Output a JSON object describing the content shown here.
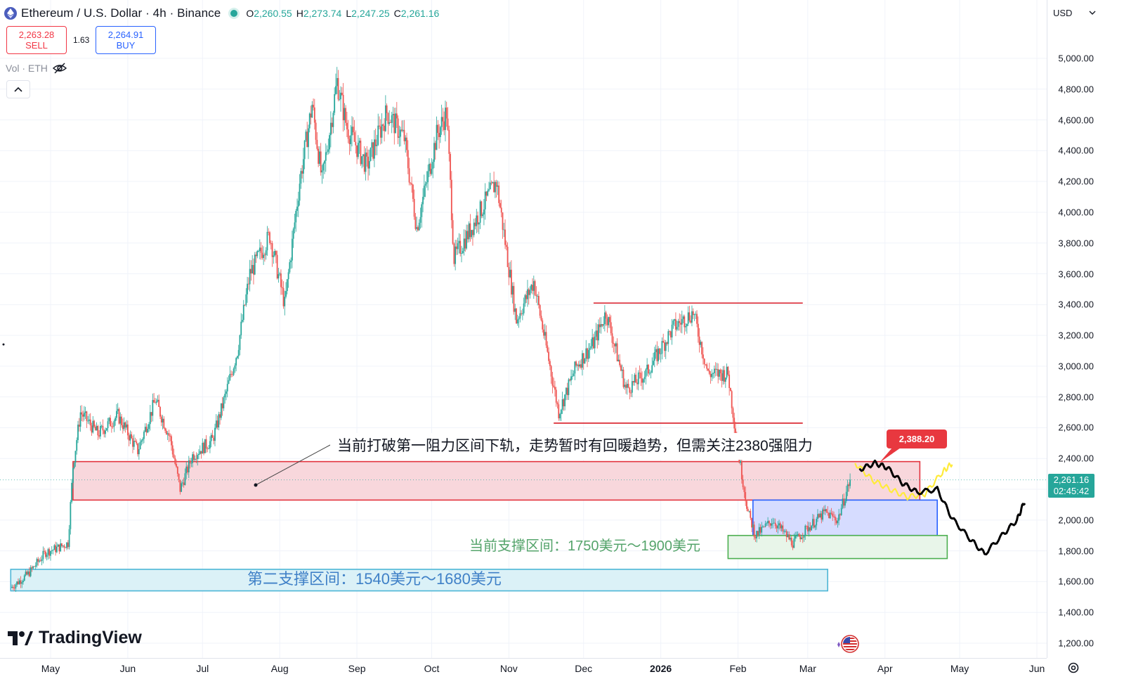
{
  "header": {
    "symbol_title": "Ethereum / U.S. Dollar · 4h · Binance",
    "ohlc": [
      {
        "k": "O",
        "v": "2,260.55"
      },
      {
        "k": "H",
        "v": "2,273.74"
      },
      {
        "k": "L",
        "v": "2,247.25"
      },
      {
        "k": "C",
        "v": "2,261.16"
      }
    ],
    "sell_price": "2,263.28",
    "sell_label": "SELL",
    "spread": "1.63",
    "buy_price": "2,264.91",
    "buy_label": "BUY",
    "vol_label": "Vol · ETH",
    "collapse_icon": "chevron-up-icon"
  },
  "currency": "USD",
  "current_price": {
    "price": "2,261.16",
    "countdown": "02:45:42"
  },
  "price_ticks": [
    "5,000.00",
    "4,800.00",
    "4,600.00",
    "4,400.00",
    "4,200.00",
    "4,000.00",
    "3,800.00",
    "3,600.00",
    "3,400.00",
    "3,200.00",
    "3,000.00",
    "2,800.00",
    "2,600.00",
    "2,400.00",
    "2,000.00",
    "1,800.00",
    "1,600.00",
    "1,400.00",
    "1,200.00"
  ],
  "time_ticks": [
    {
      "label": "May",
      "bold": false
    },
    {
      "label": "Jun",
      "bold": false
    },
    {
      "label": "Jul",
      "bold": false
    },
    {
      "label": "Aug",
      "bold": false
    },
    {
      "label": "Sep",
      "bold": false
    },
    {
      "label": "Oct",
      "bold": false
    },
    {
      "label": "Nov",
      "bold": false
    },
    {
      "label": "Dec",
      "bold": false
    },
    {
      "label": "2026",
      "bold": true
    },
    {
      "label": "Feb",
      "bold": false
    },
    {
      "label": "Mar",
      "bold": false
    },
    {
      "label": "Apr",
      "bold": false
    },
    {
      "label": "May",
      "bold": false
    },
    {
      "label": "Jun",
      "bold": false
    }
  ],
  "annotations": {
    "main_callout": "当前打破第一阻力区间下轨，走势暂时有回暖趋势，但需关注2380强阻力",
    "resistance_tag": "2,388.20",
    "support_zone_1": "当前支撑区间：1750美元～1900美元",
    "support_zone_2": "第二支撑区间：1540美元～1680美元"
  },
  "branding": {
    "logo_text": "TradingView"
  },
  "colors": {
    "up": "#26a69a",
    "down": "#ef5350",
    "resistance_zone": "#e3343f",
    "support_zone_blue": "#2962ff",
    "support_zone_green": "#4caf50",
    "support_zone_cyan": "#4db6d6",
    "projection_black": "#000000",
    "projection_yellow": "#ffeb3b"
  },
  "chart_data": {
    "type": "candlestick",
    "title": "Ethereum / U.S. Dollar · 4h · Binance",
    "x_range": [
      "2025-04-15",
      "2026-06-05"
    ],
    "y_range": [
      1140,
      5150
    ],
    "grid": true,
    "price_path": [
      {
        "d": "2025-04-15",
        "p": 1560
      },
      {
        "d": "2025-04-22",
        "p": 1650
      },
      {
        "d": "2025-04-29",
        "p": 1790
      },
      {
        "d": "2025-05-04",
        "p": 1820
      },
      {
        "d": "2025-05-08",
        "p": 1850
      },
      {
        "d": "2025-05-10",
        "p": 2350
      },
      {
        "d": "2025-05-13",
        "p": 2700
      },
      {
        "d": "2025-05-20",
        "p": 2560
      },
      {
        "d": "2025-05-28",
        "p": 2680
      },
      {
        "d": "2025-06-05",
        "p": 2450
      },
      {
        "d": "2025-06-12",
        "p": 2780
      },
      {
        "d": "2025-06-18",
        "p": 2530
      },
      {
        "d": "2025-06-22",
        "p": 2200
      },
      {
        "d": "2025-06-27",
        "p": 2420
      },
      {
        "d": "2025-07-05",
        "p": 2520
      },
      {
        "d": "2025-07-10",
        "p": 2800
      },
      {
        "d": "2025-07-15",
        "p": 3100
      },
      {
        "d": "2025-07-20",
        "p": 3600
      },
      {
        "d": "2025-07-28",
        "p": 3850
      },
      {
        "d": "2025-08-03",
        "p": 3400
      },
      {
        "d": "2025-08-09",
        "p": 4200
      },
      {
        "d": "2025-08-14",
        "p": 4700
      },
      {
        "d": "2025-08-18",
        "p": 4200
      },
      {
        "d": "2025-08-24",
        "p": 4850
      },
      {
        "d": "2025-08-28",
        "p": 4550
      },
      {
        "d": "2025-09-05",
        "p": 4300
      },
      {
        "d": "2025-09-13",
        "p": 4650
      },
      {
        "d": "2025-09-20",
        "p": 4480
      },
      {
        "d": "2025-09-25",
        "p": 3900
      },
      {
        "d": "2025-10-03",
        "p": 4500
      },
      {
        "d": "2025-10-07",
        "p": 4650
      },
      {
        "d": "2025-10-10",
        "p": 3700
      },
      {
        "d": "2025-10-17",
        "p": 3900
      },
      {
        "d": "2025-10-27",
        "p": 4200
      },
      {
        "d": "2025-11-04",
        "p": 3300
      },
      {
        "d": "2025-11-11",
        "p": 3550
      },
      {
        "d": "2025-11-21",
        "p": 2700
      },
      {
        "d": "2025-11-28",
        "p": 3000
      },
      {
        "d": "2025-12-05",
        "p": 3150
      },
      {
        "d": "2025-12-10",
        "p": 3350
      },
      {
        "d": "2025-12-18",
        "p": 2850
      },
      {
        "d": "2025-12-26",
        "p": 2950
      },
      {
        "d": "2026-01-06",
        "p": 3250
      },
      {
        "d": "2026-01-14",
        "p": 3350
      },
      {
        "d": "2026-01-20",
        "p": 2950
      },
      {
        "d": "2026-01-28",
        "p": 2950
      },
      {
        "d": "2026-02-01",
        "p": 2450
      },
      {
        "d": "2026-02-05",
        "p": 2050
      },
      {
        "d": "2026-02-08",
        "p": 1900
      },
      {
        "d": "2026-02-15",
        "p": 2000
      },
      {
        "d": "2026-02-23",
        "p": 1850
      },
      {
        "d": "2026-03-01",
        "p": 1950
      },
      {
        "d": "2026-03-08",
        "p": 2050
      },
      {
        "d": "2026-03-13",
        "p": 2000
      },
      {
        "d": "2026-03-18",
        "p": 2261
      }
    ],
    "zones": [
      {
        "name": "resistance",
        "from": "2025-05-10",
        "to": "2026-04-15",
        "low": 2130,
        "high": 2380
      },
      {
        "name": "support_blue",
        "from": "2026-02-07",
        "to": "2026-04-22",
        "low": 1900,
        "high": 2130
      },
      {
        "name": "support_green",
        "from": "2026-01-28",
        "to": "2026-04-26",
        "low": 1750,
        "high": 1900
      },
      {
        "name": "support_cyan",
        "from": "2025-04-15",
        "to": "2026-03-09",
        "low": 1540,
        "high": 1680
      }
    ],
    "horizontal_lines": [
      {
        "from": "2025-12-05",
        "to": "2026-02-27",
        "price": 3410
      },
      {
        "from": "2025-11-19",
        "to": "2026-02-27",
        "price": 2630
      }
    ],
    "projection_black": [
      {
        "d": "2026-03-22",
        "p": 2330
      },
      {
        "d": "2026-03-28",
        "p": 2370
      },
      {
        "d": "2026-04-02",
        "p": 2340
      },
      {
        "d": "2026-04-08",
        "p": 2240
      },
      {
        "d": "2026-04-14",
        "p": 2180
      },
      {
        "d": "2026-04-22",
        "p": 2200
      },
      {
        "d": "2026-04-28",
        "p": 2010
      },
      {
        "d": "2026-05-05",
        "p": 1880
      },
      {
        "d": "2026-05-11",
        "p": 1780
      },
      {
        "d": "2026-05-18",
        "p": 1900
      },
      {
        "d": "2026-05-24",
        "p": 2000
      },
      {
        "d": "2026-05-27",
        "p": 2120
      }
    ],
    "projection_yellow": [
      {
        "d": "2026-03-20",
        "p": 2370
      },
      {
        "d": "2026-03-27",
        "p": 2260
      },
      {
        "d": "2026-04-03",
        "p": 2200
      },
      {
        "d": "2026-04-10",
        "p": 2150
      },
      {
        "d": "2026-04-17",
        "p": 2170
      },
      {
        "d": "2026-04-24",
        "p": 2310
      },
      {
        "d": "2026-04-28",
        "p": 2370
      }
    ]
  }
}
